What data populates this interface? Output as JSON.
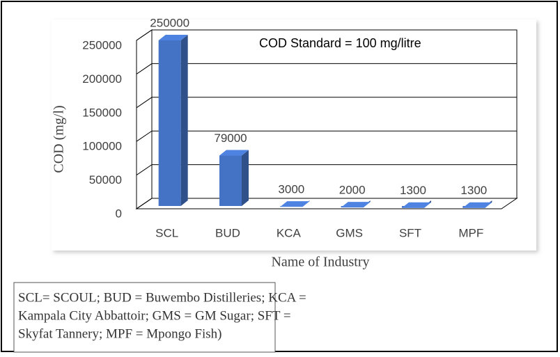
{
  "chart_data": {
    "type": "bar3d",
    "annotation": "COD Standard = 100 mg/litre",
    "y_label": "COD (mg/l)",
    "x_label": "Name of Industry",
    "categories": [
      "SCL",
      "BUD",
      "KCA",
      "GMS",
      "SFT",
      "MPF"
    ],
    "values": [
      250000,
      79000,
      3000,
      2000,
      1300,
      1300
    ],
    "color": "#4472c4",
    "ylim": [
      0,
      250000
    ],
    "yticks": [
      0,
      50000,
      100000,
      150000,
      200000,
      250000
    ],
    "grid": true
  },
  "footnote": [
    "SCL= SCOUL; BUD = Buwembo Distilleries; KCA =",
    "Kampala City Abbattoir; GMS = GM Sugar;  SFT =",
    "Skyfat Tannery; MPF = Mpongo Fish)"
  ]
}
